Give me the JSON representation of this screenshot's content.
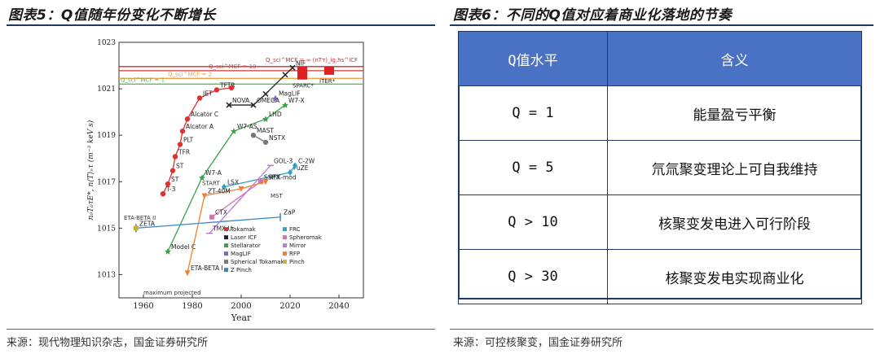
{
  "left": {
    "caption": "图表5：Q值随年份变化不断增长",
    "source": "来源：现代物理知识杂志，国金证券研究所"
  },
  "right": {
    "caption": "图表6：不同的Q值对应着商业化落地的节奏",
    "source": "来源：可控核聚变，国金证券研究所",
    "table": {
      "headers": [
        "Q值水平",
        "含义"
      ],
      "rows": [
        [
          "Q = 1",
          "能量盈亏平衡"
        ],
        [
          "Q = 5",
          "氘氚聚变理论上可自我维持"
        ],
        [
          "Q > 10",
          "核聚变发电进入可行阶段"
        ],
        [
          "Q > 30",
          "核聚变发电实现商业化"
        ]
      ]
    }
  },
  "chart_data": {
    "type": "scatter",
    "xlabel": "Year",
    "ylabel": "n₀T₀τE*, n⟨T⟩ₙτ (m⁻³ keV s)",
    "xlim": [
      1950,
      2050
    ],
    "ylim": [
      1000000000000.0,
      1e+23
    ],
    "yscale": "log",
    "x_ticks": [
      "1960",
      "1980",
      "2000",
      "2020",
      "2040"
    ],
    "y_ticks": [
      "10^13",
      "10^15",
      "10^17",
      "10^19",
      "10^21",
      "10^23"
    ],
    "reference_lines": [
      {
        "label": "Q_sci^MCF = 1",
        "y": 1.6e+21,
        "color": "#5cb85c"
      },
      {
        "label": "Q_sci^MCF = 2",
        "y": 2.8e+21,
        "color": "#f0a04b"
      },
      {
        "label": "Q_sci^MCF = 10",
        "y": 6e+21,
        "color": "#d9534f"
      },
      {
        "label": "Q_sci^MCF = ∞ (nTτ)_ig,hs^ICF",
        "y": 9e+21,
        "color": "#c9302c"
      }
    ],
    "series": [
      {
        "name": "Tokamak",
        "color": "#e03030",
        "marker": "circle",
        "x": [
          1968,
          1970,
          1972,
          1973,
          1975,
          1976,
          1978,
          1983,
          1990,
          1996
        ],
        "y": [
          3e+16,
          8e+16,
          3e+17,
          1.2e+18,
          4e+18,
          1.5e+19,
          5e+19,
          4e+20,
          9e+20,
          1.1e+21
        ],
        "labels": [
          "T-3",
          "ST",
          "ST",
          "TFR",
          "PLT",
          "Alcator A",
          "Alcator C",
          "JET",
          "TFTR",
          ""
        ]
      },
      {
        "name": "Laser ICF",
        "color": "#222222",
        "marker": "x",
        "x": [
          1995,
          2005,
          2010,
          2018,
          2021
        ],
        "y": [
          2e+20,
          2e+20,
          6e+20,
          4e+21,
          8e+21
        ],
        "labels": [
          "NOVA",
          "OMEGA",
          "",
          "",
          "NIF"
        ]
      },
      {
        "name": "Stellarator",
        "color": "#3aa04a",
        "marker": "star",
        "x": [
          1970,
          1984,
          1997,
          2010,
          2018
        ],
        "y": [
          100000000000000.0,
          1.5e+17,
          1.5e+19,
          5e+19,
          2e+20
        ],
        "labels": [
          "Model C",
          "W7-A",
          "W7-AS",
          "LHD",
          "W7-X"
        ]
      },
      {
        "name": "MagLIF",
        "color": "#7a6ab3",
        "marker": "triangle",
        "x": [
          2014
        ],
        "y": [
          4e+20
        ],
        "labels": [
          "MagLIF"
        ]
      },
      {
        "name": "Spherical Tokamak",
        "color": "#777777",
        "marker": "hexagon",
        "x": [
          2005,
          2010
        ],
        "y": [
          1e+19,
          5e+18
        ],
        "labels": [
          "MAST",
          "NSTX"
        ]
      },
      {
        "name": "Z Pinch",
        "color": "#3388cc",
        "marker": "tick",
        "x": [
          1957,
          2016
        ],
        "y": [
          1000000000000000.0,
          3000000000000000.0
        ],
        "labels": [
          "ZETA",
          "ZaP"
        ]
      },
      {
        "name": "FRC",
        "color": "#2aa5c5",
        "marker": "diamond",
        "x": [
          1993,
          2020,
          2022
        ],
        "y": [
          6e+16,
          2.5e+17,
          5e+17
        ],
        "labels": [
          "LSX",
          "FuZE",
          "C-2W"
        ]
      },
      {
        "name": "Spheromak",
        "color": "#d96fb5",
        "marker": "square",
        "x": [
          1988,
          2008
        ],
        "y": [
          3000000000000000.0,
          1e+17
        ],
        "labels": [
          "CTX",
          "SSPX"
        ]
      },
      {
        "name": "Mirror",
        "color": "#b57bd6",
        "marker": "dash",
        "x": [
          1987,
          2012
        ],
        "y": [
          600000000000000.0,
          5e+17
        ],
        "labels": [
          "TMX-U",
          "GOL-3"
        ]
      },
      {
        "name": "RFP",
        "color": "#f08030",
        "marker": "triangle-down",
        "x": [
          1978,
          1985,
          2000,
          2010
        ],
        "y": [
          12000000000000.0,
          2.5e+16,
          5e+16,
          1e+17
        ],
        "labels": [
          "ETA-BETA I",
          "ZT-40M",
          "",
          "RFX-mod"
        ]
      },
      {
        "name": "Pinch",
        "color": "#c8b430",
        "marker": "square",
        "x": [
          1957
        ],
        "y": [
          1000000000000000.0
        ],
        "labels": [
          ""
        ]
      }
    ],
    "annotations": [
      "ETA-BETA II",
      "START",
      "MST",
      "SPARC*",
      "ITER*",
      "projected",
      "maximum projected"
    ],
    "projected_bars": [
      {
        "name": "SPARC*",
        "x": 2025,
        "y_low": 2.5e+21,
        "y_high": 9e+21,
        "color": "#e02020"
      },
      {
        "name": "ITER*",
        "x": 2036,
        "y_low": 4e+21,
        "y_high": 9e+21,
        "color": "#e02020"
      }
    ],
    "legend_position": "bottom-right",
    "grid": false
  }
}
